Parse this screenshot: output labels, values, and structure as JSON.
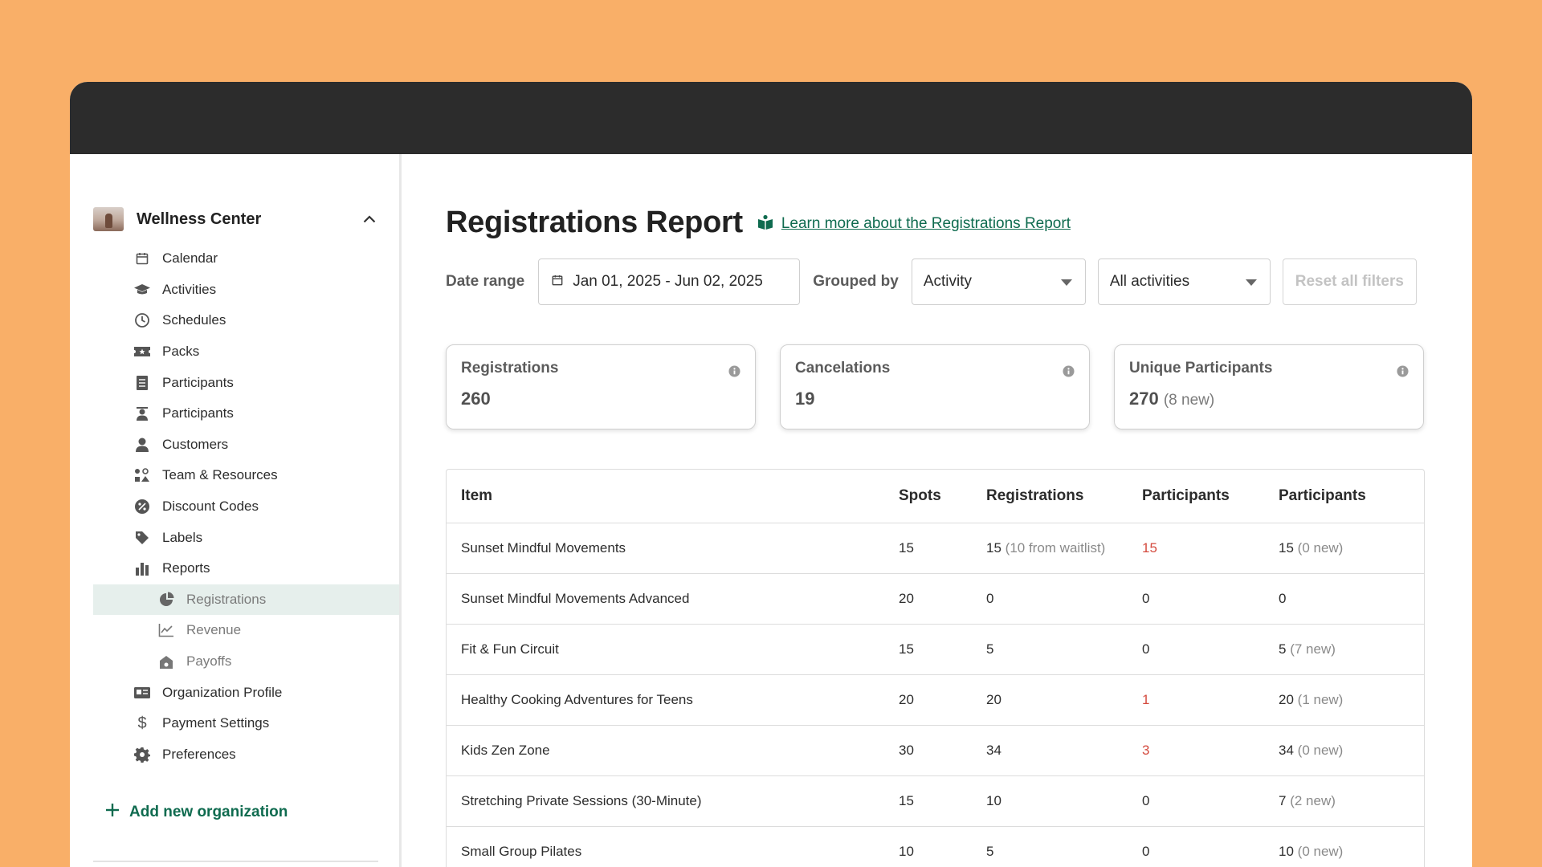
{
  "sidebar": {
    "org_name": "Wellness Center",
    "items": [
      {
        "label": "Calendar",
        "icon": "calendar-icon"
      },
      {
        "label": "Activities",
        "icon": "graduation-cap-icon"
      },
      {
        "label": "Schedules",
        "icon": "clock-icon"
      },
      {
        "label": "Packs",
        "icon": "ticket-icon"
      },
      {
        "label": "Participants",
        "icon": "clipboard-list-icon"
      },
      {
        "label": "Participants",
        "icon": "teacher-icon"
      },
      {
        "label": "Customers",
        "icon": "user-icon"
      },
      {
        "label": "Team & Resources",
        "icon": "team-resources-icon"
      },
      {
        "label": "Discount Codes",
        "icon": "percent-badge-icon"
      },
      {
        "label": "Labels",
        "icon": "tag-icon"
      },
      {
        "label": "Reports",
        "icon": "bar-chart-icon"
      }
    ],
    "report_items": [
      {
        "label": "Registrations",
        "icon": "pie-chart-icon",
        "active": true
      },
      {
        "label": "Revenue",
        "icon": "line-chart-icon"
      },
      {
        "label": "Payoffs",
        "icon": "payoffs-icon"
      }
    ],
    "bottom_items": [
      {
        "label": "Organization Profile",
        "icon": "id-card-icon"
      },
      {
        "label": "Payment Settings",
        "icon": "dollar-icon"
      },
      {
        "label": "Preferences",
        "icon": "gear-icon"
      }
    ],
    "add_org_label": "Add new organization"
  },
  "header": {
    "title": "Registrations Report",
    "learn_more": "Learn more about the Registrations Report"
  },
  "filters": {
    "date_range_label": "Date range",
    "date_range_value": "Jan 01, 2025 - Jun 02, 2025",
    "grouped_by_label": "Grouped by",
    "grouped_by_value": "Activity",
    "activity_filter_value": "All activities",
    "reset_label": "Reset all filters"
  },
  "cards": {
    "registrations": {
      "label": "Registrations",
      "value": "260"
    },
    "cancelations": {
      "label": "Cancelations",
      "value": "19"
    },
    "unique": {
      "label": "Unique Participants",
      "value": "270",
      "note": "(8 new)"
    }
  },
  "table": {
    "headers": [
      "Item",
      "Spots",
      "Registrations",
      "Participants",
      "Participants"
    ],
    "rows": [
      {
        "item": "Sunset Mindful Movements",
        "spots": "15",
        "reg": "15",
        "reg_note": "(10 from waitlist)",
        "p1": "15",
        "p1_red": true,
        "p2": "15",
        "p2_note": "(0 new)"
      },
      {
        "item": "Sunset Mindful Movements Advanced",
        "spots": "20",
        "reg": "0",
        "reg_note": "",
        "p1": "0",
        "p1_red": false,
        "p2": "0",
        "p2_note": ""
      },
      {
        "item": "Fit & Fun Circuit",
        "spots": "15",
        "reg": "5",
        "reg_note": "",
        "p1": "0",
        "p1_red": false,
        "p2": "5",
        "p2_note": "(7 new)"
      },
      {
        "item": "Healthy Cooking Adventures for Teens",
        "spots": "20",
        "reg": "20",
        "reg_note": "",
        "p1": "1",
        "p1_red": true,
        "p2": "20",
        "p2_note": "(1 new)"
      },
      {
        "item": "Kids Zen Zone",
        "spots": "30",
        "reg": "34",
        "reg_note": "",
        "p1": "3",
        "p1_red": true,
        "p2": "34",
        "p2_note": "(0 new)"
      },
      {
        "item": "Stretching Private Sessions (30-Minute)",
        "spots": "15",
        "reg": "10",
        "reg_note": "",
        "p1": "0",
        "p1_red": false,
        "p2": "7",
        "p2_note": "(2 new)"
      },
      {
        "item": "Small Group Pilates",
        "spots": "10",
        "reg": "5",
        "reg_note": "",
        "p1": "0",
        "p1_red": false,
        "p2": "10",
        "p2_note": "(0 new)"
      }
    ]
  },
  "colors": {
    "background": "#f9af68",
    "titlebar": "#2c2c2c",
    "accent": "#0f6b4f",
    "active_nav": "#e6efec",
    "alert_red": "#d44b3f"
  }
}
